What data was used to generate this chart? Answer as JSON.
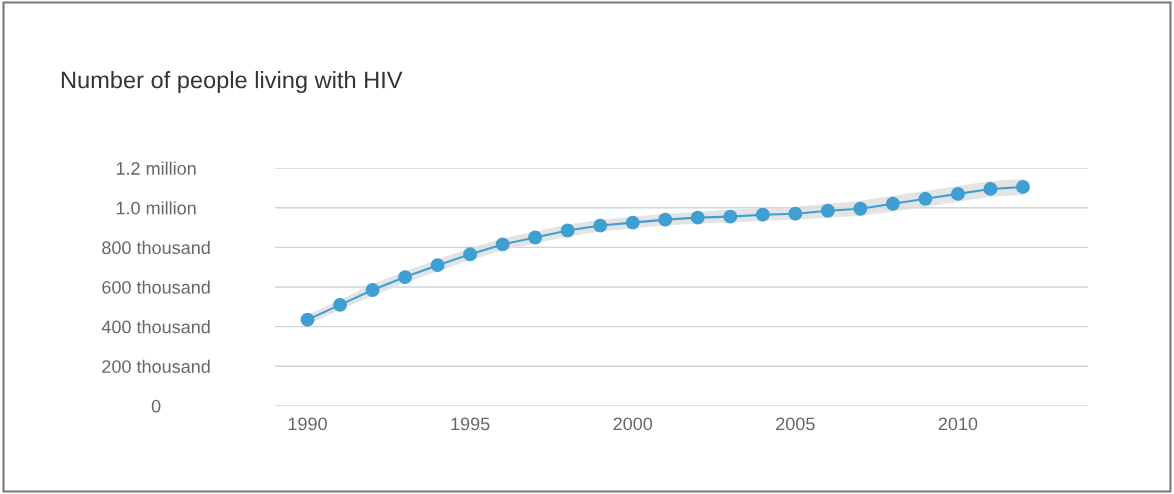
{
  "chart_data": {
    "type": "line",
    "title": "Number of people living with HIV",
    "x": [
      1990,
      1991,
      1992,
      1993,
      1994,
      1995,
      1996,
      1997,
      1998,
      1999,
      2000,
      2001,
      2002,
      2003,
      2004,
      2005,
      2006,
      2007,
      2008,
      2009,
      2010,
      2011,
      2012
    ],
    "series": [
      {
        "color": "#3f9fd3",
        "values": [
          435000,
          510000,
          585000,
          650000,
          710000,
          765000,
          815000,
          850000,
          885000,
          910000,
          925000,
          940000,
          950000,
          955000,
          965000,
          970000,
          985000,
          995000,
          1020000,
          1045000,
          1070000,
          1095000,
          1105000
        ],
        "lower": [
          410000,
          485000,
          555000,
          620000,
          680000,
          735000,
          785000,
          820000,
          855000,
          880000,
          895000,
          910000,
          920000,
          925000,
          935000,
          940000,
          950000,
          960000,
          980000,
          1005000,
          1030000,
          1055000,
          1065000
        ],
        "upper": [
          460000,
          535000,
          615000,
          680000,
          740000,
          795000,
          845000,
          880000,
          915000,
          940000,
          955000,
          970000,
          980000,
          990000,
          1000000,
          1005000,
          1020000,
          1035000,
          1060000,
          1085000,
          1110000,
          1135000,
          1145000
        ]
      }
    ],
    "xlim": [
      1989,
      2014
    ],
    "xticks": [
      1990,
      1995,
      2000,
      2005,
      2010
    ],
    "ylim": [
      0,
      1200000
    ],
    "yticks": [
      {
        "value": 0,
        "label": "0"
      },
      {
        "value": 200000,
        "label": "200 thousand"
      },
      {
        "value": 400000,
        "label": "400 thousand"
      },
      {
        "value": 600000,
        "label": "600 thousand"
      },
      {
        "value": 800000,
        "label": "800 thousand"
      },
      {
        "value": 1000000,
        "label": "1.0 million"
      },
      {
        "value": 1200000,
        "label": "1.2 million"
      }
    ],
    "grid": "y",
    "marker": "circle",
    "line_style": "solid"
  }
}
